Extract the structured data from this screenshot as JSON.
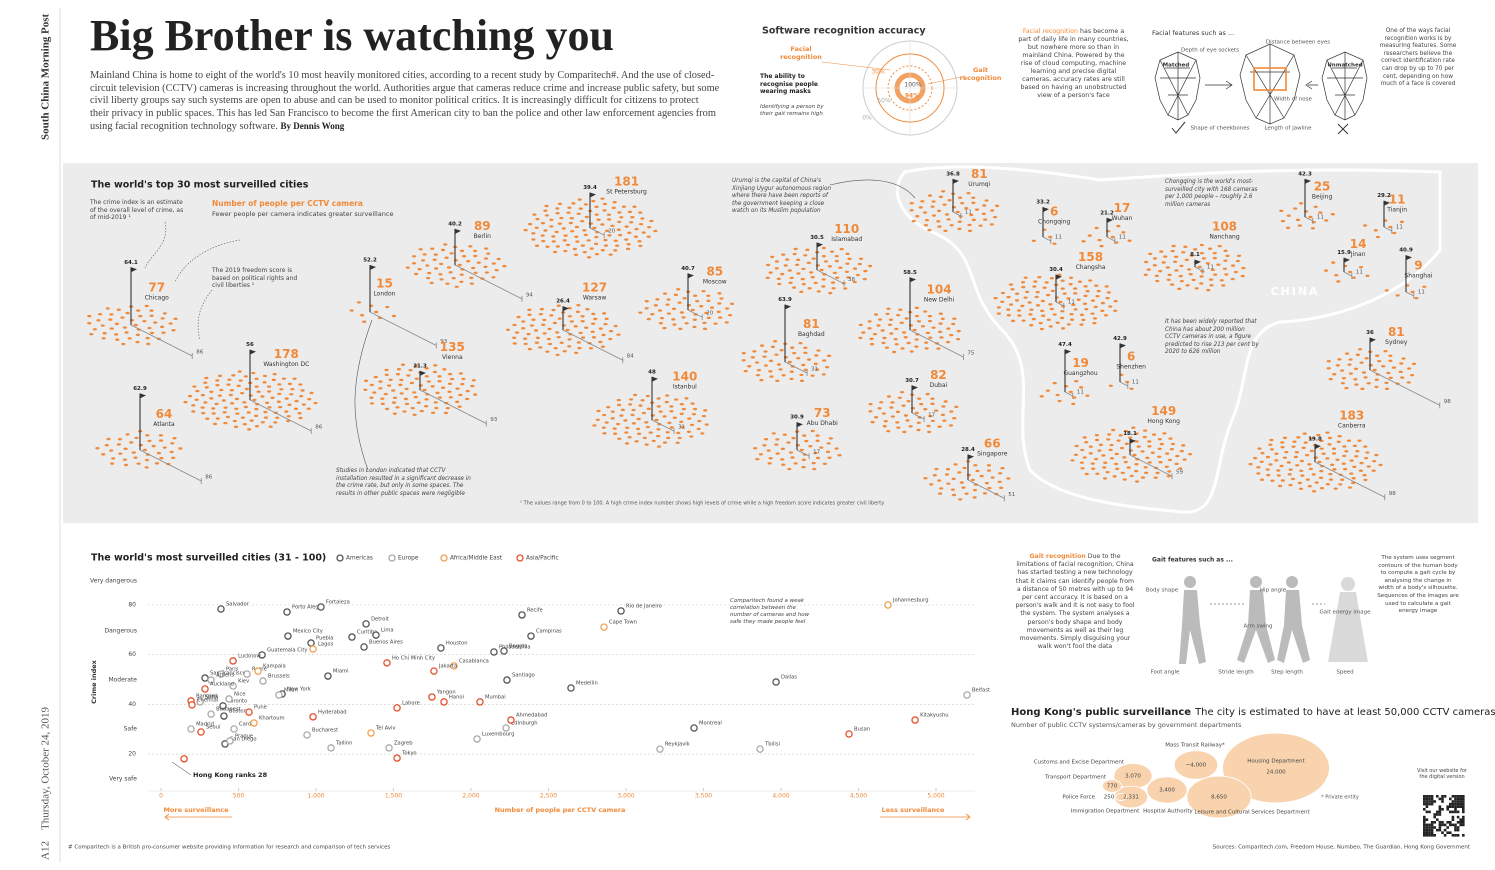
{
  "masthead": {
    "publication": "South China Morning Post",
    "date": "Thursday, October 24, 2019",
    "page": "A12"
  },
  "header": {
    "title": "Big Brother is watching you",
    "intro": "Mainland China is home to eight of the world's 10 most heavily monitored cities, according to a recent study by Comparitech#. And the use of closed-circuit television (CCTV) cameras is increasing throughout the world. Authorities argue that cameras reduce crime and increase public safety, but some civil liberty groups say such systems are open to abuse and can be used to monitor political critics. It is increasingly difficult for citizens to protect their privacy in public spaces. This has led San Francisco to become the first American city to ban the police and other law enforcement agencies from using facial recognition technology software.",
    "byline": "By Dennis Wong"
  },
  "software_recognition": {
    "title": "Software recognition accuracy",
    "facial_label": "Facial recognition",
    "gait_label": "Gait recognition",
    "masks_label": "The ability to recognise people wearing masks",
    "masks_note": "Identifying a person by their gait remains high",
    "ring_labels": [
      "30%",
      "100%",
      "94%",
      "50%",
      "0%"
    ]
  },
  "facial_recognition": {
    "lead": "Facial recognition",
    "body": " has become a part of daily life in many countries, but nowhere more so than in mainland China. Powered by the rise of cloud computing, machine learning and precise digital cameras, accuracy rates are still based on having an unobstructed view of a person's face"
  },
  "facial_features": {
    "title": "Facial features such as ...",
    "matched": "Matched",
    "unmatched": "Unmatched",
    "labels": [
      "Depth of eye sockets",
      "Distance between eyes",
      "Width of nose",
      "Shape of cheekbones",
      "Length of jawline"
    ],
    "note": "One of the ways facial recognition works is by measuring features. Some researchers believe the correct identification rate can drop by up to 70 per cent, depending on how much of a face is covered"
  },
  "gait": {
    "lead": "Gait recognition",
    "body": " Due to the limitations of facial recognition, China has started testing a new technology that it claims can identify people from a distance of 50 metres with up to 94 per cent accuracy. It is based on a person's walk and it is not easy to fool the system. The system analyses a person's body shape and body movements as well as their leg movements. Simply disguising your walk won't fool the data",
    "features_title": "Gait features such as ...",
    "labels": [
      "Body shape",
      "Hip angle",
      "Arm swing",
      "Gait energy image",
      "Foot angle",
      "Stride length",
      "Step length",
      "Speed"
    ],
    "note": "The system uses segment contours of the human body to compute a gait cycle by analysing the change in width of a body's silhouette. Sequences of the images are used to calculate a gait energy image"
  },
  "chart_data": [
    {
      "type": "pictogram",
      "title": "The world's top 30 most surveilled cities",
      "series_label": "Number of people per CCTV camera",
      "series_note": "Fewer people per camera indicates greater surveillance",
      "crime_note": "The crime index is an estimate of the overall level of crime, as of mid-2019 ¹",
      "freedom_note": "The 2019 freedom score is based on political rights and civil liberties ¹",
      "region_label": "CHINA",
      "annotations": [
        "Studies in London indicated that CCTV installation resulted in a significant decrease in the crime rate, but only in some spaces. The results in other public spaces were negligible",
        "Urumqi is the capital of China's Xinjiang Uygur autonomous region where there have been reports of the government keeping a close watch on its Muslim population",
        "Chongqing is the world's most-surveilled city with 168 cameras per 1,000 people – roughly 2.6 million cameras",
        "It has been widely reported that China has about 200 million CCTV cameras in use, a figure predicted to rise 213 per cent by 2020 to 626 million"
      ],
      "footnote": "¹ The values range from 0 to 100. A high crime index number shows high levels of crime while a high freedom score indicates greater civil liberty",
      "color": "#f08a3a",
      "categories": [
        "Chicago",
        "Atlanta",
        "Washington DC",
        "London",
        "Vienna",
        "Berlin",
        "St Petersburg",
        "Warsaw",
        "Moscow",
        "Istanbul",
        "Islamabad",
        "Baghdad",
        "Abu Dhabi",
        "New Delhi",
        "Dubai",
        "Singapore",
        "Urumqi",
        "Chongqing",
        "Wuhan",
        "Changsha",
        "Nanchang",
        "Beijing",
        "Tianjin",
        "Jinan",
        "Shanghai",
        "Guangzhou",
        "Shenzhen",
        "Hong Kong",
        "Sydney",
        "Canberra"
      ],
      "values": [
        77,
        64,
        178,
        15,
        135,
        89,
        181,
        127,
        85,
        140,
        110,
        81,
        73,
        104,
        82,
        66,
        81,
        6,
        17,
        158,
        108,
        25,
        11,
        14,
        9,
        19,
        6,
        149,
        81,
        183
      ],
      "crime_index": [
        64.1,
        62.9,
        56,
        52.2,
        21.3,
        40.2,
        39.4,
        26.4,
        40.7,
        48,
        30.5,
        63.9,
        30.9,
        58.5,
        30.7,
        28.4,
        36.8,
        33.2,
        21.2,
        30.4,
        8.1,
        42.3,
        29.2,
        15.9,
        40.9,
        47.4,
        42.9,
        18.1,
        36,
        19.8
      ],
      "freedom_score": [
        86,
        86,
        86,
        93,
        93,
        94,
        20,
        84,
        20,
        31,
        38,
        31,
        17,
        75,
        17,
        51,
        11,
        11,
        11,
        11,
        11,
        11,
        11,
        11,
        11,
        11,
        11,
        59,
        98,
        98
      ]
    },
    {
      "type": "scatter",
      "title": "The world's most surveilled cities (31 - 100)",
      "x_label": "Number of people per CCTV camera",
      "y_label": "Crime index",
      "x_low_label": "More surveillance",
      "x_high_label": "Less surveillance",
      "crime_levels": [
        "Very dangerous",
        "Dangerous",
        "Moderate",
        "Safe",
        "Very safe"
      ],
      "annotations": [
        "Comparitech found a weak correlation between the number of cameras and how safe they made people feel",
        "Hong Kong ranks 28"
      ],
      "xlim": [
        0,
        5250
      ],
      "ylim": [
        5,
        92
      ],
      "xticks": [
        0,
        500,
        {
          "value": 1000,
          "label": "1,000"
        },
        {
          "value": 1500,
          "label": "1,500"
        },
        {
          "value": 2000,
          "label": "2,000"
        },
        {
          "value": 2500,
          "label": "2,500"
        },
        {
          "value": 3000,
          "label": "3,000"
        },
        {
          "value": 3500,
          "label": "3,500"
        },
        {
          "value": 4000,
          "label": "4,000"
        },
        {
          "value": 4500,
          "label": "4,500"
        },
        {
          "value": 5000,
          "label": "5,000"
        }
      ],
      "yticks": [
        20,
        40,
        60,
        80
      ],
      "grid": true,
      "series": [
        {
          "name": "Americas",
          "color": "#555555",
          "labels": [
            "Salvador",
            "Porto Alegre",
            "Fortaleza",
            "Detroit",
            "Mexico City",
            "Puebla",
            "Curitiba",
            "Lima",
            "Buenos Aires",
            "Houston",
            "Bogota",
            "Recife",
            "Campinas",
            "Rio de Janeiro",
            "Guatemala City",
            "Philadelphia",
            "San Francisco",
            "New York",
            "Miami",
            "Santiago",
            "Medellin",
            "Dallas",
            "Boston",
            "Toronto",
            "San Diego",
            "Montreal"
          ],
          "x": [
            387,
            813,
            1032,
            1323,
            819,
            968,
            1232,
            1387,
            1310,
            1806,
            2213,
            2329,
            2387,
            2968,
            652,
            2148,
            284,
            781,
            1077,
            2232,
            2645,
            3968,
            406,
            400,
            413,
            3439
          ],
          "values": [
            78.4,
            77.2,
            79.2,
            72.4,
            67.5,
            64.7,
            67.1,
            67.9,
            63.1,
            62.7,
            61.5,
            76,
            67.5,
            77.6,
            59.9,
            61.1,
            50.6,
            44.2,
            51.4,
            49.8,
            46.6,
            49,
            35.3,
            39.4,
            24.1,
            30.5
          ]
        },
        {
          "name": "Europe",
          "color": "#aaaaaa",
          "labels": [
            "Paris",
            "Rome",
            "Athens",
            "Brussels",
            "Kiev",
            "Sofia",
            "Nice",
            "Milan",
            "Belfast",
            "Budapest",
            "Madrid",
            "Cardiff",
            "Prague",
            "Bucharest",
            "Tallinn",
            "Zagreb",
            "Edinburgh",
            "Luxembourg",
            "Reykjavik",
            "Tbilisi"
          ],
          "x": [
            387,
            555,
            323,
            658,
            465,
            252,
            439,
            761,
            5200,
            323,
            194,
            471,
            445,
            942,
            1097,
            1471,
            2226,
            2039,
            3219,
            3865
          ],
          "values": [
            52.2,
            52.2,
            49.8,
            49.4,
            47.4,
            41,
            42.2,
            43.8,
            43.8,
            36.1,
            30.1,
            30.1,
            25.3,
            27.7,
            22.5,
            22.5,
            30.5,
            26.1,
            22,
            22
          ]
        },
        {
          "name": "Africa/Middle East",
          "color": "#f0a050",
          "labels": [
            "Cape Town",
            "Lagos",
            "Kampala",
            "Casablanca",
            "Johannesburg",
            "Khartoum",
            "Tel Aviv"
          ],
          "x": [
            2858,
            981,
            626,
            1890,
            4690,
            600,
            1355
          ],
          "values": [
            71.1,
            62.3,
            53.4,
            55.5,
            80,
            32.5,
            28.5
          ]
        },
        {
          "name": "Asia/Pacific",
          "color": "#e4502a",
          "labels": [
            "Lucknow",
            "Auckland",
            "Bangkok",
            "Ho Chi Minh City",
            "Jakarta",
            "Chennai",
            "Seoul",
            "Pune",
            "Hyderabad",
            "Tokyo",
            "Lahore",
            "Yangon",
            "Hanoi",
            "Mumbai",
            "Ahmedabad",
            "Busan",
            "Kitakyushu",
            null
          ],
          "x": [
            465,
            284,
            194,
            1458,
            1761,
            200,
            258,
            568,
            981,
            1523,
            1523,
            1748,
            1826,
            2058,
            2258,
            4439,
            4865,
            149
          ],
          "values": [
            57.5,
            46.2,
            41.4,
            56.7,
            53.4,
            39.8,
            28.9,
            36.9,
            35,
            18.4,
            38.6,
            43,
            41,
            41,
            33.7,
            28.1,
            33.7,
            18.1
          ]
        }
      ]
    },
    {
      "type": "bubble",
      "title": "Hong Kong's public surveillance",
      "subtitle": "The city is estimated to have at least 50,000 CCTV cameras",
      "axis_note": "Number of public CCTV systems/cameras by government departments",
      "note": "* Private entity",
      "color": "#f8d3ae",
      "categories": [
        "Customs and Excise Department",
        "Transport Department",
        "Police Force",
        "Immigration Department",
        "Hospital Authority",
        "Mass Transit Railway*",
        "Leisure and Cultural Services Department",
        "Housing Department"
      ],
      "values": [
        3070,
        770,
        250,
        2331,
        3400,
        4000,
        8650,
        24000
      ],
      "value_labels": [
        "3,070",
        "770",
        "250",
        "2,331",
        "3,400",
        "~4,000",
        "8,650",
        "24,000"
      ]
    }
  ],
  "footer": {
    "footnote": "# Comparitech is a British pro-consumer website providing information for research and comparison of tech services",
    "sources": "Sources: Comparitech.com, Freedom House, Numbeo, The Guardian, Hong Kong Government",
    "website": "Visit our website for the digital version"
  }
}
